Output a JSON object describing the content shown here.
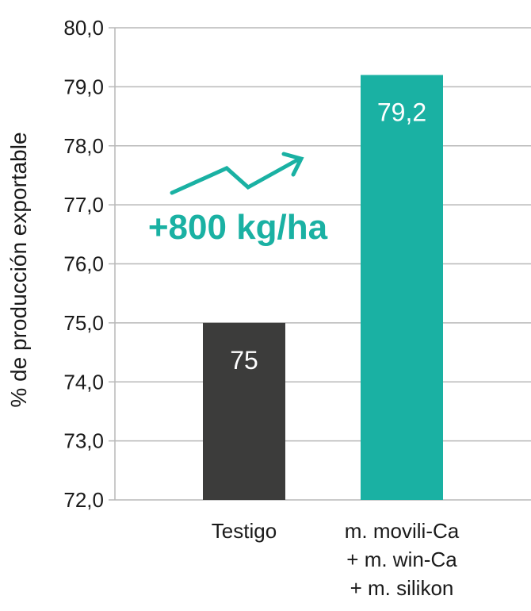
{
  "chart_data": {
    "type": "bar",
    "categories": [
      [
        "Testigo"
      ],
      [
        "m. movili-Ca",
        "+ m. win-Ca",
        "+ m. silikon"
      ]
    ],
    "values": [
      75,
      79.2
    ],
    "value_labels": [
      "75",
      "79,2"
    ],
    "bar_colors": [
      "#3c3c3b",
      "#1ab1a3"
    ],
    "ylabel": "% de producción exportable",
    "ylim": [
      72,
      80
    ],
    "yticks": [
      72,
      73,
      74,
      75,
      76,
      77,
      78,
      79,
      80
    ],
    "ytick_labels": [
      "72,0",
      "73,0",
      "74,0",
      "75,0",
      "76,0",
      "77,0",
      "78,0",
      "79,0",
      "80,0"
    ],
    "grid": true,
    "annotation": {
      "text": "+800 kg/ha",
      "color": "#1ab1a3",
      "icon": "trend-up-arrow-icon"
    }
  }
}
